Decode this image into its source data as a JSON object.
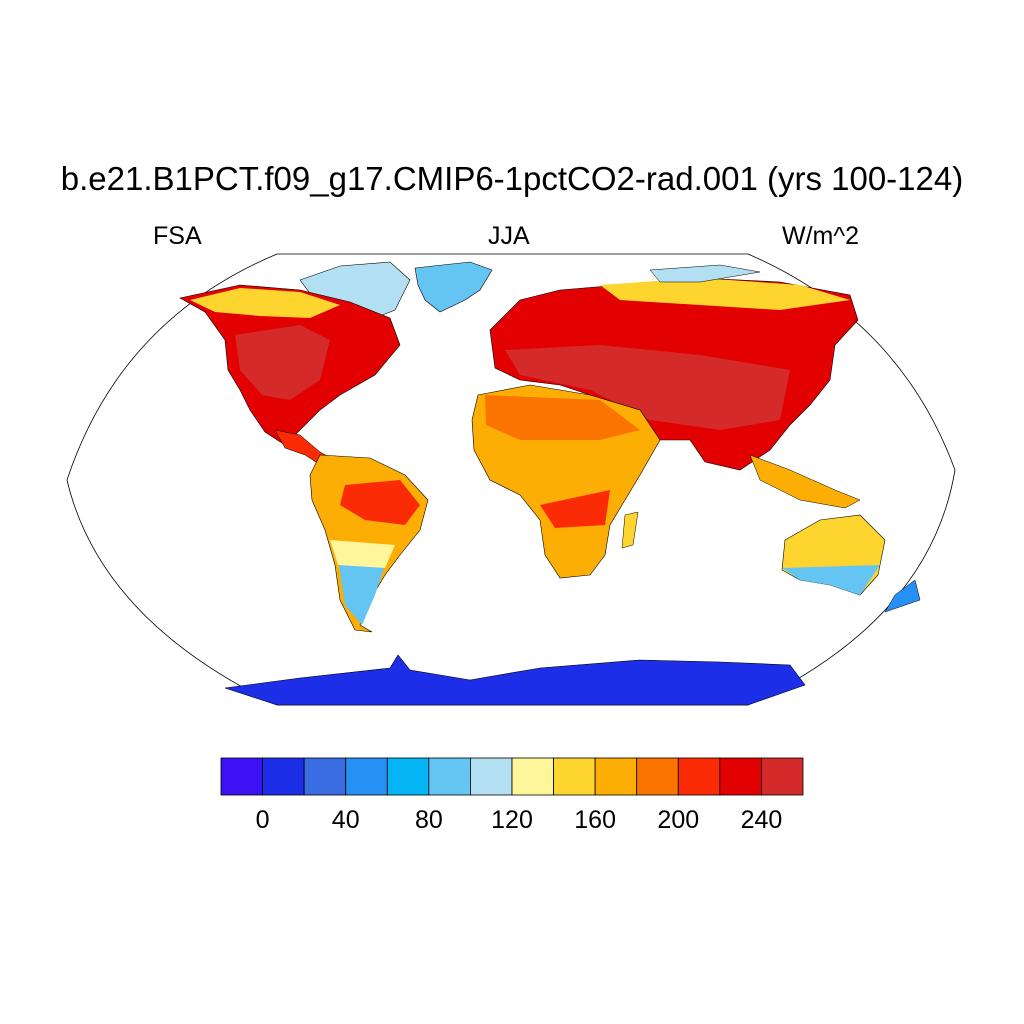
{
  "title": "b.e21.B1PCT.f09_g17.CMIP6-1pctCO2-rad.001 (yrs 100-124)",
  "left_string": "FSA",
  "center_string": "JJA",
  "right_string": "W/m^2",
  "map": {
    "projection": "robinson",
    "field": "FSA",
    "season": "JJA",
    "units": "W/m^2"
  },
  "colorbar": {
    "colors": [
      "#3c12f4",
      "#1c2ee8",
      "#3a6ce2",
      "#2690f5",
      "#05b5f6",
      "#64c5f2",
      "#b3dff2",
      "#fff59a",
      "#fed52e",
      "#fcae05",
      "#fc7400",
      "#fb2c05",
      "#e20000",
      "#d42a2a"
    ],
    "boundaries": [
      -20,
      0,
      20,
      40,
      60,
      80,
      100,
      120,
      140,
      160,
      180,
      200,
      220,
      240
    ],
    "tick_labels": [
      "0",
      "40",
      "80",
      "120",
      "160",
      "200",
      "240"
    ]
  }
}
